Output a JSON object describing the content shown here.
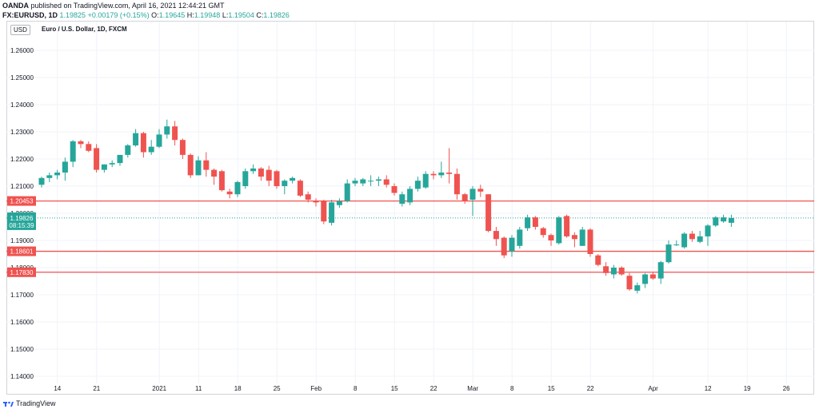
{
  "header": {
    "publisher": "OANDA",
    "rest": " published on TradingView.com, April 16, 2021 12:44:21 GMT"
  },
  "ohlc": {
    "symbol": "FX:EURUSD, 1D",
    "last": "1.19825",
    "change": "+0.00179 (+0.15%)",
    "open_label": "O:",
    "open": "1.19645",
    "high_label": "H:",
    "high": "1.19948",
    "low_label": "L:",
    "low": "1.19504",
    "close_label": "C:",
    "close": "1.19826"
  },
  "chart_title": "Euro / U.S. Dollar, 1D, FXCM",
  "currency_badge": "USD",
  "footer": {
    "brand": "TradingView"
  },
  "colors": {
    "up": "#26a69a",
    "down": "#ef5350",
    "hline": "#ef5350",
    "grid": "#f0f3fa",
    "price_line": "#26a69a"
  },
  "chart_data": {
    "type": "candlestick",
    "ylim": [
      1.14,
      1.265
    ],
    "y_ticks": [
      "1.14000",
      "1.15000",
      "1.16000",
      "1.17000",
      "1.18000",
      "1.19000",
      "1.20000",
      "1.21000",
      "1.22000",
      "1.23000",
      "1.24000",
      "1.25000",
      "1.26000"
    ],
    "x_ticks": [
      {
        "label": "14",
        "index": 1
      },
      {
        "label": "21",
        "index": 6
      },
      {
        "label": "2021",
        "index": 14
      },
      {
        "label": "11",
        "index": 19
      },
      {
        "label": "18",
        "index": 24
      },
      {
        "label": "25",
        "index": 29
      },
      {
        "label": "Feb",
        "index": 34
      },
      {
        "label": "8",
        "index": 39
      },
      {
        "label": "15",
        "index": 44
      },
      {
        "label": "22",
        "index": 49
      },
      {
        "label": "Mar",
        "index": 54
      },
      {
        "label": "8",
        "index": 59
      },
      {
        "label": "15",
        "index": 64
      },
      {
        "label": "22",
        "index": 69
      },
      {
        "label": "Apr",
        "index": 77
      },
      {
        "label": "12",
        "index": 84
      },
      {
        "label": "19",
        "index": 89
      },
      {
        "label": "26",
        "index": 94
      }
    ],
    "horizontal_lines": [
      {
        "value": 1.20453,
        "label": "1.20453"
      },
      {
        "value": 1.18601,
        "label": "1.18601"
      },
      {
        "value": 1.1783,
        "label": "1.17830"
      }
    ],
    "current_price": {
      "value": 1.19826,
      "label": "1.19826",
      "countdown": "08:15:39"
    },
    "candles": [
      [
        1.2105,
        1.2135,
        1.2095,
        1.213
      ],
      [
        1.213,
        1.215,
        1.2115,
        1.214
      ],
      [
        1.214,
        1.216,
        1.2125,
        1.215
      ],
      [
        1.215,
        1.2205,
        1.212,
        1.219
      ],
      [
        1.219,
        1.227,
        1.217,
        1.2265
      ],
      [
        1.2265,
        1.227,
        1.224,
        1.2255
      ],
      [
        1.2255,
        1.2265,
        1.2225,
        1.223
      ],
      [
        1.224,
        1.2255,
        1.215,
        1.216
      ],
      [
        1.216,
        1.218,
        1.215,
        1.218
      ],
      [
        1.218,
        1.2195,
        1.217,
        1.2185
      ],
      [
        1.2185,
        1.2215,
        1.2175,
        1.2215
      ],
      [
        1.2215,
        1.2255,
        1.2205,
        1.225
      ],
      [
        1.225,
        1.231,
        1.2245,
        1.2295
      ],
      [
        1.2295,
        1.23,
        1.2205,
        1.2225
      ],
      [
        1.2225,
        1.227,
        1.2215,
        1.2245
      ],
      [
        1.2245,
        1.231,
        1.224,
        1.229
      ],
      [
        1.229,
        1.2345,
        1.2275,
        1.232
      ],
      [
        1.232,
        1.234,
        1.225,
        1.227
      ],
      [
        1.227,
        1.2275,
        1.22,
        1.2215
      ],
      [
        1.2215,
        1.222,
        1.213,
        1.214
      ],
      [
        1.214,
        1.221,
        1.214,
        1.2195
      ],
      [
        1.2195,
        1.2225,
        1.2135,
        1.216
      ],
      [
        1.216,
        1.2165,
        1.2105,
        1.2135
      ],
      [
        1.2155,
        1.216,
        1.208,
        1.2085
      ],
      [
        1.208,
        1.209,
        1.2055,
        1.207
      ],
      [
        1.207,
        1.212,
        1.206,
        1.2115
      ],
      [
        1.21,
        1.2165,
        1.209,
        1.2155
      ],
      [
        1.2155,
        1.218,
        1.2145,
        1.2165
      ],
      [
        1.2165,
        1.217,
        1.212,
        1.2135
      ],
      [
        1.216,
        1.2175,
        1.21,
        1.212
      ],
      [
        1.2155,
        1.216,
        1.209,
        1.21
      ],
      [
        1.21,
        1.2125,
        1.207,
        1.212
      ],
      [
        1.212,
        1.2135,
        1.211,
        1.213
      ],
      [
        1.212,
        1.2125,
        1.206,
        1.2065
      ],
      [
        1.207,
        1.208,
        1.204,
        1.205
      ],
      [
        1.2045,
        1.2055,
        1.2025,
        1.204
      ],
      [
        1.2045,
        1.205,
        1.196,
        1.197
      ],
      [
        1.1965,
        1.205,
        1.1955,
        1.204
      ],
      [
        1.203,
        1.2055,
        1.202,
        1.2045
      ],
      [
        1.2045,
        1.2125,
        1.204,
        1.211
      ],
      [
        1.211,
        1.213,
        1.21,
        1.212
      ],
      [
        1.211,
        1.213,
        1.21,
        1.2125
      ],
      [
        1.212,
        1.214,
        1.21,
        1.212
      ],
      [
        1.212,
        1.2135,
        1.21,
        1.2125
      ],
      [
        1.2125,
        1.214,
        1.2095,
        1.2105
      ],
      [
        1.21,
        1.211,
        1.2065,
        1.2075
      ],
      [
        1.2035,
        1.208,
        1.2025,
        1.207
      ],
      [
        1.204,
        1.21,
        1.203,
        1.209
      ],
      [
        1.209,
        1.2135,
        1.208,
        1.212
      ],
      [
        1.2095,
        1.2155,
        1.209,
        1.2145
      ],
      [
        1.2145,
        1.2155,
        1.2125,
        1.214
      ],
      [
        1.214,
        1.219,
        1.213,
        1.215
      ],
      [
        1.215,
        1.224,
        1.211,
        1.2145
      ],
      [
        1.2145,
        1.2165,
        1.205,
        1.207
      ],
      [
        1.207,
        1.2075,
        1.2035,
        1.2045
      ],
      [
        1.205,
        1.21,
        1.199,
        1.209
      ],
      [
        1.209,
        1.2105,
        1.206,
        1.208
      ],
      [
        1.207,
        1.207,
        1.193,
        1.1935
      ],
      [
        1.1935,
        1.195,
        1.188,
        1.1905
      ],
      [
        1.191,
        1.1915,
        1.1835,
        1.1845
      ],
      [
        1.186,
        1.192,
        1.184,
        1.191
      ],
      [
        1.188,
        1.195,
        1.187,
        1.194
      ],
      [
        1.1945,
        1.1995,
        1.1935,
        1.1985
      ],
      [
        1.1985,
        1.199,
        1.194,
        1.195
      ],
      [
        1.1945,
        1.195,
        1.191,
        1.192
      ],
      [
        1.192,
        1.1925,
        1.188,
        1.19
      ],
      [
        1.189,
        1.199,
        1.1885,
        1.1985
      ],
      [
        1.199,
        1.1995,
        1.191,
        1.1915
      ],
      [
        1.192,
        1.193,
        1.1875,
        1.1905
      ],
      [
        1.188,
        1.195,
        1.188,
        1.194
      ],
      [
        1.194,
        1.1945,
        1.184,
        1.185
      ],
      [
        1.1845,
        1.185,
        1.1805,
        1.181
      ],
      [
        1.1805,
        1.182,
        1.177,
        1.178
      ],
      [
        1.1775,
        1.181,
        1.176,
        1.18
      ],
      [
        1.18,
        1.1805,
        1.177,
        1.1775
      ],
      [
        1.177,
        1.178,
        1.1715,
        1.172
      ],
      [
        1.1715,
        1.1745,
        1.1705,
        1.1735
      ],
      [
        1.174,
        1.178,
        1.1725,
        1.1775
      ],
      [
        1.1775,
        1.1785,
        1.1755,
        1.176
      ],
      [
        1.176,
        1.1825,
        1.174,
        1.182
      ],
      [
        1.182,
        1.19,
        1.1815,
        1.1885
      ],
      [
        1.1885,
        1.19,
        1.188,
        1.1885
      ],
      [
        1.1875,
        1.193,
        1.187,
        1.1925
      ],
      [
        1.1925,
        1.1935,
        1.1895,
        1.1905
      ],
      [
        1.1895,
        1.1935,
        1.189,
        1.1915
      ],
      [
        1.1915,
        1.196,
        1.188,
        1.1955
      ],
      [
        1.1955,
        1.199,
        1.195,
        1.1985
      ],
      [
        1.197,
        1.1995,
        1.1965,
        1.1985
      ],
      [
        1.1965,
        1.1995,
        1.195,
        1.1983
      ]
    ]
  }
}
